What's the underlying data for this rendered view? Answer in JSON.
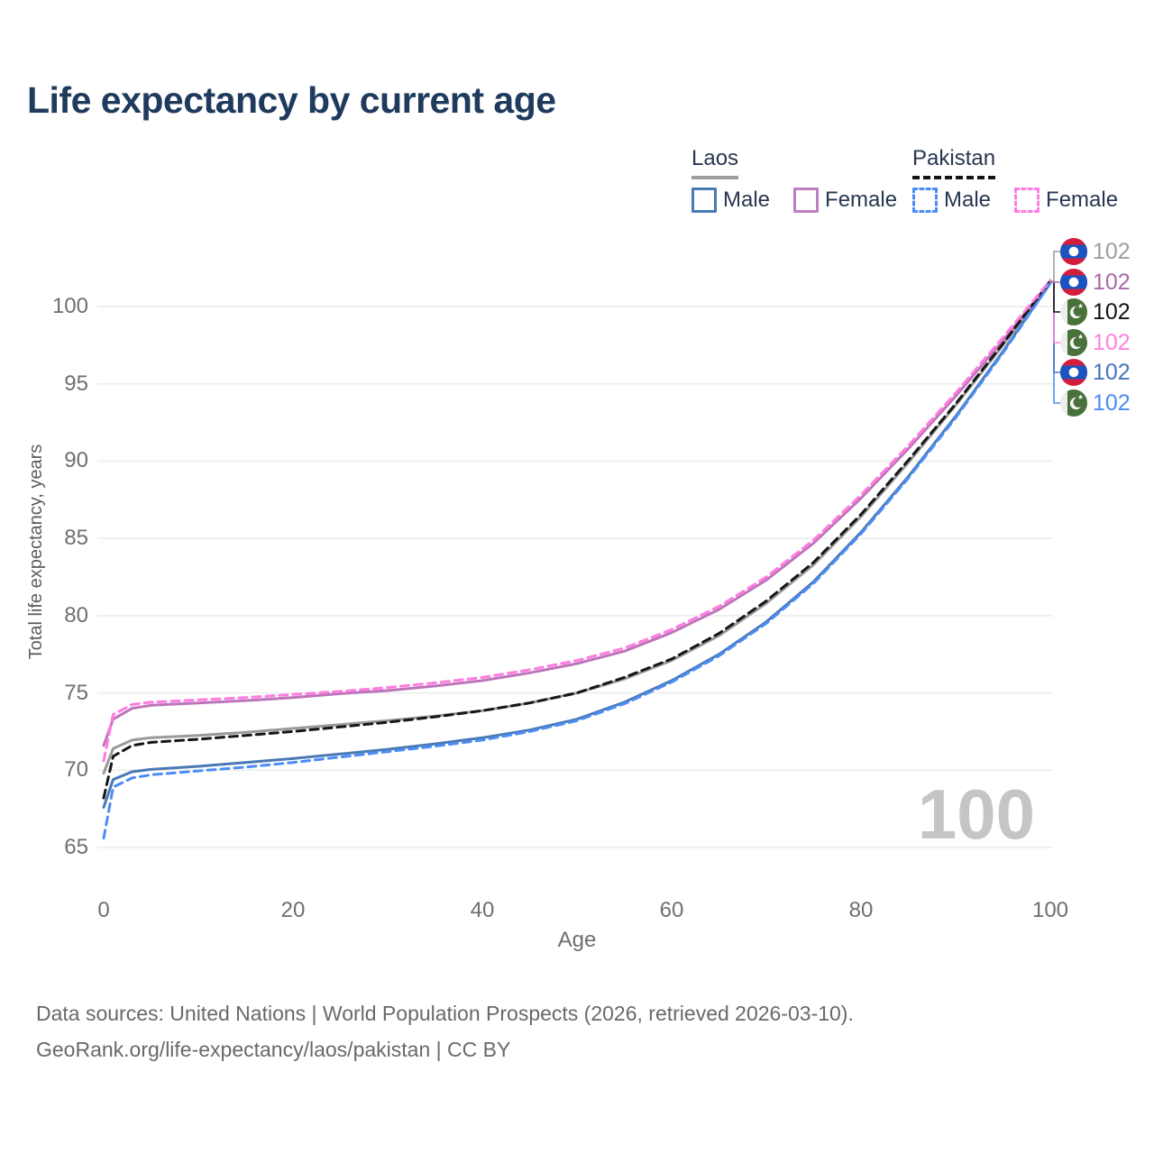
{
  "title": "Life expectancy by current age",
  "legend": {
    "groups": [
      {
        "label": "Laos",
        "line_style": "solid",
        "swatch_color": "#9e9e9e",
        "items": [
          {
            "label": "Male",
            "color": "#4a79b6"
          },
          {
            "label": "Female",
            "color": "#bf7fbf"
          }
        ]
      },
      {
        "label": "Pakistan",
        "line_style": "dashed",
        "swatch_color": "#141414",
        "items": [
          {
            "label": "Male",
            "color": "#4c8cf5"
          },
          {
            "label": "Female",
            "color": "#ff7ce0"
          }
        ]
      }
    ]
  },
  "watermark": "100",
  "footer": {
    "line1": "Data sources: United Nations | World Population Prospects (2026, retrieved 2026-03-10).",
    "line2": "GeoRank.org/life-expectancy/laos/pakistan | CC BY"
  },
  "chart_data": {
    "type": "line",
    "title": "Life expectancy by current age",
    "xlabel": "Age",
    "ylabel": "Total life expectancy, years",
    "xlim": [
      0,
      100
    ],
    "ylim": [
      65,
      102.5
    ],
    "xticks": [
      0,
      20,
      40,
      60,
      80,
      100
    ],
    "yticks": [
      65,
      70,
      75,
      80,
      85,
      90,
      95,
      100
    ],
    "grid": "horizontal",
    "legend_position": "top-right",
    "x": [
      0,
      1,
      3,
      5,
      10,
      15,
      20,
      25,
      30,
      35,
      40,
      45,
      50,
      55,
      60,
      65,
      70,
      75,
      80,
      85,
      90,
      95,
      100
    ],
    "series": [
      {
        "name": "Laos Total",
        "country": "Laos",
        "group": "Total",
        "color": "#9a9a9a",
        "dash": false,
        "values": [
          69.8,
          71.4,
          71.95,
          72.1,
          72.25,
          72.45,
          72.7,
          72.95,
          73.2,
          73.5,
          73.85,
          74.35,
          75.0,
          75.9,
          77.1,
          78.7,
          80.8,
          83.3,
          86.4,
          89.9,
          93.6,
          97.5,
          101.6
        ]
      },
      {
        "name": "Laos Female",
        "country": "Laos",
        "group": "Female",
        "color": "#bd74ba",
        "dash": false,
        "values": [
          71.6,
          73.3,
          74.0,
          74.2,
          74.35,
          74.5,
          74.7,
          74.95,
          75.15,
          75.45,
          75.8,
          76.3,
          76.9,
          77.7,
          78.9,
          80.4,
          82.3,
          84.7,
          87.6,
          90.8,
          94.2,
          97.8,
          101.6
        ]
      },
      {
        "name": "Laos Male",
        "country": "Laos",
        "group": "Male",
        "color": "#4a79b6",
        "dash": false,
        "values": [
          67.6,
          69.4,
          69.9,
          70.05,
          70.25,
          70.5,
          70.75,
          71.05,
          71.35,
          71.7,
          72.1,
          72.6,
          73.3,
          74.4,
          75.8,
          77.5,
          79.6,
          82.2,
          85.4,
          89.0,
          92.9,
          97.1,
          101.5
        ]
      },
      {
        "name": "Pakistan Total",
        "country": "Pakistan",
        "group": "Total",
        "color": "#161616",
        "dash": true,
        "values": [
          68.2,
          70.9,
          71.6,
          71.8,
          72.0,
          72.25,
          72.5,
          72.8,
          73.1,
          73.45,
          73.85,
          74.35,
          75.0,
          76.0,
          77.2,
          78.85,
          80.95,
          83.45,
          86.55,
          90.05,
          93.7,
          97.6,
          101.65
        ]
      },
      {
        "name": "Pakistan Female",
        "country": "Pakistan",
        "group": "Female",
        "color": "#ff7ce0",
        "dash": true,
        "values": [
          70.6,
          73.6,
          74.25,
          74.4,
          74.55,
          74.7,
          74.9,
          75.1,
          75.35,
          75.65,
          76.0,
          76.5,
          77.1,
          77.9,
          79.1,
          80.6,
          82.5,
          84.9,
          87.8,
          91.0,
          94.4,
          98.0,
          101.7
        ]
      },
      {
        "name": "Pakistan Male",
        "country": "Pakistan",
        "group": "Male",
        "color": "#4c8cf5",
        "dash": true,
        "values": [
          65.6,
          68.9,
          69.5,
          69.7,
          69.95,
          70.2,
          70.5,
          70.85,
          71.2,
          71.55,
          71.95,
          72.5,
          73.2,
          74.3,
          75.7,
          77.4,
          79.5,
          82.1,
          85.3,
          88.9,
          92.8,
          97.0,
          101.5
        ]
      }
    ],
    "current_age_indicator": "100",
    "end_labels": [
      {
        "flag": "laos",
        "series": "Laos Total",
        "value": "102",
        "color": "#9e9e9e"
      },
      {
        "flag": "laos",
        "series": "Laos Female",
        "value": "102",
        "color": "#a869a8"
      },
      {
        "flag": "pakistan",
        "series": "Pakistan Total",
        "value": "102",
        "color": "#141414"
      },
      {
        "flag": "pakistan",
        "series": "Pakistan Female",
        "value": "102",
        "color": "#ff80df"
      },
      {
        "flag": "laos",
        "series": "Laos Male",
        "value": "102",
        "color": "#4574bd"
      },
      {
        "flag": "pakistan",
        "series": "Pakistan Male",
        "value": "102",
        "color": "#4c8cf5"
      }
    ]
  }
}
